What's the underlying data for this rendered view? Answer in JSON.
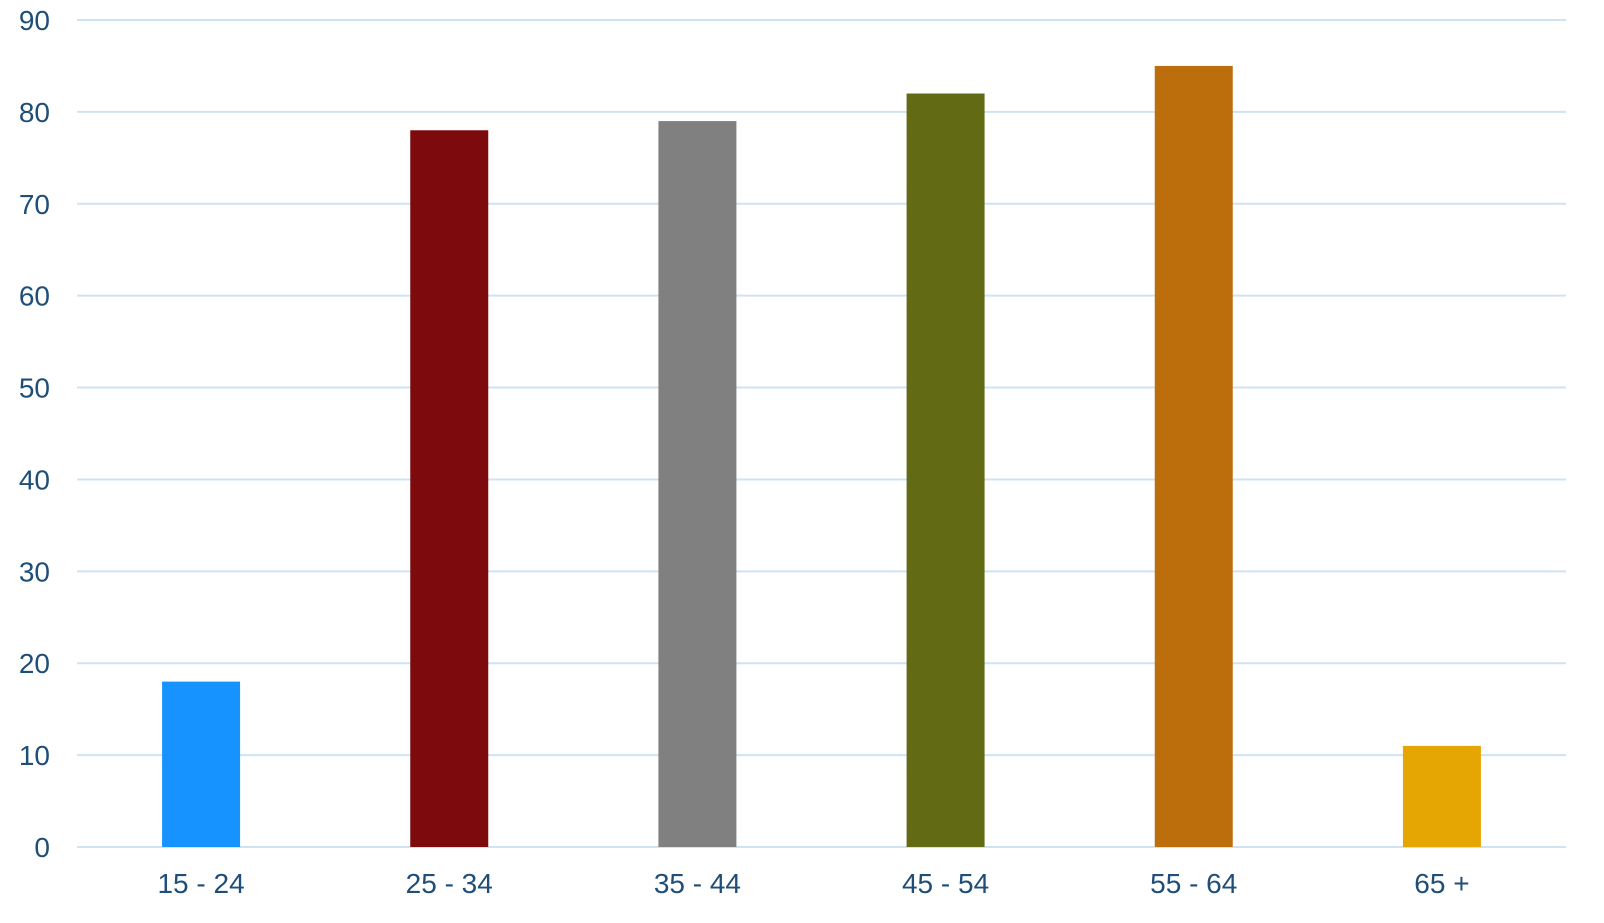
{
  "chart_data": {
    "type": "bar",
    "title": "",
    "xlabel": "",
    "ylabel": "",
    "categories": [
      "15 - 24",
      "25 - 34",
      "35 - 44",
      "45 - 54",
      "55 - 64",
      "65 +"
    ],
    "values": [
      18,
      78,
      79,
      82,
      85,
      11
    ],
    "colors": [
      "#1793ff",
      "#7d0a0d",
      "#808080",
      "#626b14",
      "#bd6e0c",
      "#e5a502"
    ],
    "ylim": [
      0,
      90
    ],
    "yticks": [
      0,
      10,
      20,
      30,
      40,
      50,
      60,
      70,
      80,
      90
    ],
    "grid": true,
    "legend": "none"
  }
}
